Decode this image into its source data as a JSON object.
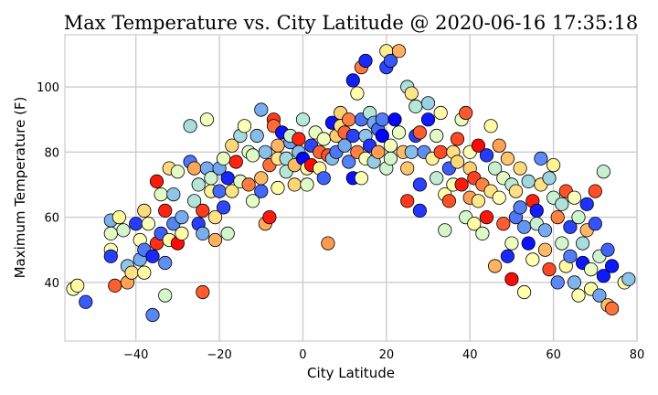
{
  "chart_data": {
    "type": "scatter",
    "title": "Max Temperature vs. City Latitude @ 2020-06-16 17:35:18",
    "xlabel": "City Latitude",
    "ylabel": "Maximum Temperature (F)",
    "xlim": [
      -57,
      80
    ],
    "ylim": [
      22,
      116
    ],
    "xticks": [
      -40,
      -20,
      0,
      20,
      40,
      60,
      80
    ],
    "yticks": [
      40,
      60,
      80,
      100
    ],
    "xtick_labels": [
      "−40",
      "−20",
      "0",
      "20",
      "40",
      "60",
      "80"
    ],
    "ytick_labels": [
      "40",
      "60",
      "80",
      "100"
    ],
    "grid": true,
    "colormap": "rainbow",
    "marker_edge_color": "#000000",
    "points": [
      [
        -55,
        38
      ],
      [
        -54,
        39
      ],
      [
        -52,
        34
      ],
      [
        -46,
        59
      ],
      [
        -46,
        55
      ],
      [
        -46,
        50
      ],
      [
        -46,
        48
      ],
      [
        -45,
        39
      ],
      [
        -44,
        60
      ],
      [
        -43,
        56
      ],
      [
        -42,
        45
      ],
      [
        -42,
        40
      ],
      [
        -41,
        43
      ],
      [
        -40,
        58
      ],
      [
        -39,
        53
      ],
      [
        -39,
        47
      ],
      [
        -38,
        62
      ],
      [
        -38,
        50
      ],
      [
        -38,
        43
      ],
      [
        -37,
        58
      ],
      [
        -36,
        30
      ],
      [
        -36,
        48
      ],
      [
        -35,
        52
      ],
      [
        -35,
        71
      ],
      [
        -34,
        55
      ],
      [
        -34,
        67
      ],
      [
        -33,
        62
      ],
      [
        -33,
        46
      ],
      [
        -33,
        36
      ],
      [
        -32,
        53
      ],
      [
        -32,
        75
      ],
      [
        -31,
        67
      ],
      [
        -31,
        58
      ],
      [
        -30,
        52
      ],
      [
        -30,
        74
      ],
      [
        -29,
        60
      ],
      [
        -29,
        55
      ],
      [
        -27,
        88
      ],
      [
        -27,
        77
      ],
      [
        -26,
        75
      ],
      [
        -26,
        65
      ],
      [
        -25,
        70
      ],
      [
        -25,
        58
      ],
      [
        -24,
        62
      ],
      [
        -24,
        55
      ],
      [
        -24,
        37
      ],
      [
        -23,
        90
      ],
      [
        -23,
        75
      ],
      [
        -22,
        68
      ],
      [
        -22,
        72
      ],
      [
        -21,
        53
      ],
      [
        -21,
        60
      ],
      [
        -20,
        68
      ],
      [
        -20,
        75
      ],
      [
        -19,
        78
      ],
      [
        -19,
        63
      ],
      [
        -18,
        72
      ],
      [
        -18,
        55
      ],
      [
        -17,
        82
      ],
      [
        -17,
        68
      ],
      [
        -16,
        77
      ],
      [
        -15,
        85
      ],
      [
        -15,
        71
      ],
      [
        -14,
        88
      ],
      [
        -13,
        80
      ],
      [
        -13,
        70
      ],
      [
        -12,
        65
      ],
      [
        -12,
        79
      ],
      [
        -11,
        85
      ],
      [
        -10,
        93
      ],
      [
        -10,
        72
      ],
      [
        -10,
        68
      ],
      [
        -9,
        80
      ],
      [
        -9,
        58
      ],
      [
        -8,
        76
      ],
      [
        -8,
        60
      ],
      [
        -7,
        90
      ],
      [
        -7,
        88
      ],
      [
        -6,
        82
      ],
      [
        -6,
        78
      ],
      [
        -6,
        69
      ],
      [
        -5,
        86
      ],
      [
        -4,
        78
      ],
      [
        -4,
        74
      ],
      [
        -3,
        83
      ],
      [
        -3,
        85
      ],
      [
        -2,
        70
      ],
      [
        -2,
        76
      ],
      [
        -1,
        80
      ],
      [
        -1,
        84
      ],
      [
        0,
        78
      ],
      [
        0,
        90
      ],
      [
        1,
        75
      ],
      [
        1,
        70
      ],
      [
        2,
        82
      ],
      [
        2,
        76
      ],
      [
        3,
        86
      ],
      [
        4,
        80
      ],
      [
        4,
        75
      ],
      [
        5,
        84
      ],
      [
        5,
        72
      ],
      [
        6,
        52
      ],
      [
        6,
        79
      ],
      [
        7,
        78
      ],
      [
        7,
        89
      ],
      [
        8,
        80
      ],
      [
        8,
        85
      ],
      [
        9,
        92
      ],
      [
        9,
        88
      ],
      [
        10,
        86
      ],
      [
        10,
        82
      ],
      [
        11,
        90
      ],
      [
        11,
        77
      ],
      [
        12,
        102
      ],
      [
        12,
        85
      ],
      [
        12,
        72
      ],
      [
        13,
        98
      ],
      [
        13,
        80
      ],
      [
        14,
        106
      ],
      [
        14,
        90
      ],
      [
        14,
        72
      ],
      [
        15,
        108
      ],
      [
        15,
        85
      ],
      [
        15,
        78
      ],
      [
        16,
        82
      ],
      [
        16,
        92
      ],
      [
        17,
        89
      ],
      [
        17,
        77
      ],
      [
        18,
        80
      ],
      [
        18,
        87
      ],
      [
        19,
        90
      ],
      [
        19,
        85
      ],
      [
        20,
        111
      ],
      [
        20,
        106
      ],
      [
        20,
        75
      ],
      [
        21,
        108
      ],
      [
        21,
        82
      ],
      [
        21,
        78
      ],
      [
        22,
        90
      ],
      [
        23,
        111
      ],
      [
        23,
        86
      ],
      [
        24,
        80
      ],
      [
        25,
        100
      ],
      [
        25,
        65
      ],
      [
        25,
        75
      ],
      [
        26,
        98
      ],
      [
        26,
        80
      ],
      [
        27,
        94
      ],
      [
        27,
        85
      ],
      [
        28,
        86
      ],
      [
        28,
        70
      ],
      [
        28,
        62
      ],
      [
        29,
        80
      ],
      [
        30,
        95
      ],
      [
        30,
        90
      ],
      [
        31,
        78
      ],
      [
        32,
        85
      ],
      [
        32,
        72
      ],
      [
        33,
        92
      ],
      [
        33,
        80
      ],
      [
        34,
        67
      ],
      [
        34,
        56
      ],
      [
        35,
        75
      ],
      [
        35,
        65
      ],
      [
        36,
        80
      ],
      [
        36,
        70
      ],
      [
        37,
        84
      ],
      [
        37,
        77
      ],
      [
        38,
        90
      ],
      [
        38,
        70
      ],
      [
        39,
        92
      ],
      [
        39,
        60
      ],
      [
        40,
        80
      ],
      [
        40,
        75
      ],
      [
        40,
        66
      ],
      [
        41,
        72
      ],
      [
        41,
        58
      ],
      [
        42,
        82
      ],
      [
        42,
        65
      ],
      [
        43,
        70
      ],
      [
        43,
        55
      ],
      [
        44,
        79
      ],
      [
        44,
        60
      ],
      [
        45,
        88
      ],
      [
        45,
        68
      ],
      [
        46,
        75
      ],
      [
        46,
        45
      ],
      [
        47,
        82
      ],
      [
        47,
        66
      ],
      [
        48,
        72
      ],
      [
        48,
        58
      ],
      [
        49,
        78
      ],
      [
        49,
        48
      ],
      [
        50,
        70
      ],
      [
        50,
        52
      ],
      [
        50,
        41
      ],
      [
        51,
        68
      ],
      [
        51,
        60
      ],
      [
        52,
        75
      ],
      [
        52,
        63
      ],
      [
        53,
        57
      ],
      [
        53,
        37
      ],
      [
        54,
        71
      ],
      [
        54,
        52
      ],
      [
        55,
        65
      ],
      [
        55,
        47
      ],
      [
        56,
        62
      ],
      [
        56,
        58
      ],
      [
        57,
        78
      ],
      [
        57,
        70
      ],
      [
        58,
        56
      ],
      [
        58,
        50
      ],
      [
        59,
        72
      ],
      [
        59,
        44
      ],
      [
        60,
        76
      ],
      [
        60,
        66
      ],
      [
        61,
        60
      ],
      [
        61,
        40
      ],
      [
        62,
        64
      ],
      [
        62,
        52
      ],
      [
        63,
        68
      ],
      [
        63,
        45
      ],
      [
        64,
        57
      ],
      [
        64,
        48
      ],
      [
        65,
        66
      ],
      [
        65,
        40
      ],
      [
        66,
        60
      ],
      [
        66,
        36
      ],
      [
        67,
        52
      ],
      [
        67,
        46
      ],
      [
        68,
        64
      ],
      [
        68,
        56
      ],
      [
        69,
        44
      ],
      [
        69,
        38
      ],
      [
        70,
        68
      ],
      [
        70,
        58
      ],
      [
        71,
        48
      ],
      [
        71,
        36
      ],
      [
        72,
        74
      ],
      [
        72,
        42
      ],
      [
        73,
        50
      ],
      [
        73,
        33
      ],
      [
        74,
        32
      ],
      [
        74,
        45
      ],
      [
        77,
        40
      ],
      [
        78,
        41
      ]
    ]
  }
}
